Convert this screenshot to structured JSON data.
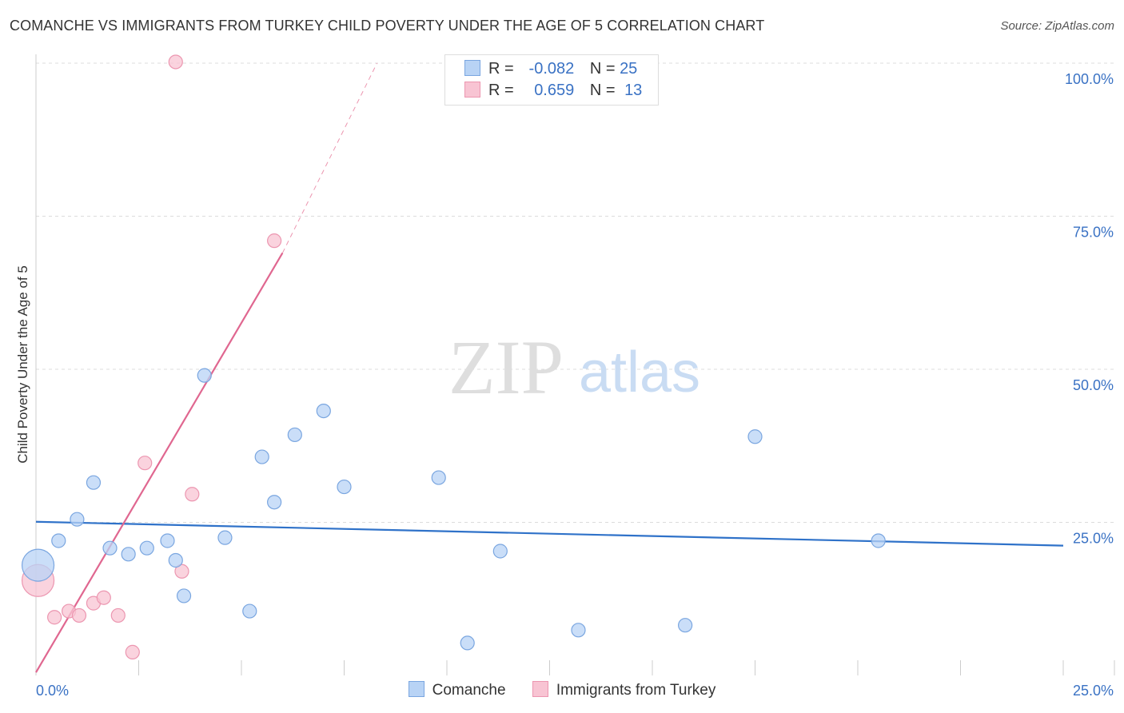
{
  "header": {
    "title": "COMANCHE VS IMMIGRANTS FROM TURKEY CHILD POVERTY UNDER THE AGE OF 5 CORRELATION CHART",
    "source": "Source: ZipAtlas.com"
  },
  "watermark": {
    "zip": "ZIP",
    "atlas": "atlas"
  },
  "stats": {
    "comanche": {
      "r_label": "R =",
      "r_value": "-0.082",
      "n_label": "N =",
      "n_value": "25"
    },
    "turkey": {
      "r_label": "R =",
      "r_value": "0.659",
      "n_label": "N =",
      "n_value": "13"
    }
  },
  "colors": {
    "comanche_fill": "#b8d3f5",
    "comanche_stroke": "#7aa6e0",
    "comanche_line": "#2f72c9",
    "turkey_fill": "#f8c4d3",
    "turkey_stroke": "#ec96b0",
    "turkey_line": "#e06790",
    "axis_text": "#3a72c4",
    "grid": "#dcdcdc"
  },
  "chart_data": {
    "type": "scatter",
    "title": "COMANCHE VS IMMIGRANTS FROM TURKEY CHILD POVERTY UNDER THE AGE OF 5 CORRELATION CHART",
    "xlabel": "",
    "ylabel": "Child Poverty Under the Age of 5",
    "xlim": [
      0,
      25
    ],
    "ylim": [
      0,
      100
    ],
    "x_ticks": [
      {
        "value": 0,
        "label": "0.0%"
      },
      {
        "value": 25,
        "label": "25.0%"
      }
    ],
    "y_ticks": [
      {
        "value": 25,
        "label": "25.0%"
      },
      {
        "value": 50,
        "label": "50.0%"
      },
      {
        "value": 75,
        "label": "75.0%"
      },
      {
        "value": 100,
        "label": "100.0%"
      }
    ],
    "series": [
      {
        "name": "Comanche",
        "r": -0.082,
        "n": 25,
        "trend": {
          "x": [
            0,
            25
          ],
          "y": [
            25.1,
            21.2
          ]
        },
        "points": [
          {
            "x": 0.05,
            "y": 18.0,
            "big": true
          },
          {
            "x": 0.55,
            "y": 22.0
          },
          {
            "x": 1.0,
            "y": 25.5
          },
          {
            "x": 1.4,
            "y": 31.5
          },
          {
            "x": 1.8,
            "y": 20.8
          },
          {
            "x": 2.25,
            "y": 19.8
          },
          {
            "x": 2.7,
            "y": 20.8
          },
          {
            "x": 3.2,
            "y": 22.0
          },
          {
            "x": 3.4,
            "y": 18.8
          },
          {
            "x": 3.6,
            "y": 13.0
          },
          {
            "x": 4.1,
            "y": 49.0
          },
          {
            "x": 4.6,
            "y": 22.5
          },
          {
            "x": 5.2,
            "y": 10.5
          },
          {
            "x": 5.5,
            "y": 35.7
          },
          {
            "x": 5.8,
            "y": 28.3
          },
          {
            "x": 6.3,
            "y": 39.3
          },
          {
            "x": 7.0,
            "y": 43.2
          },
          {
            "x": 7.5,
            "y": 30.8
          },
          {
            "x": 9.8,
            "y": 32.3
          },
          {
            "x": 10.5,
            "y": 5.3
          },
          {
            "x": 11.3,
            "y": 20.3
          },
          {
            "x": 13.2,
            "y": 7.4
          },
          {
            "x": 15.8,
            "y": 8.2
          },
          {
            "x": 17.5,
            "y": 39.0
          },
          {
            "x": 20.5,
            "y": 22.0
          }
        ]
      },
      {
        "name": "Immigrants from Turkey",
        "r": 0.659,
        "n": 13,
        "trend": {
          "x": [
            0,
            6.0
          ],
          "y": 0.5,
          "y_end": 69.0,
          "dash_to": {
            "x": 8.3,
            "y": 100
          }
        },
        "points": [
          {
            "x": 0.05,
            "y": 15.5,
            "big": true
          },
          {
            "x": 0.45,
            "y": 9.5
          },
          {
            "x": 0.8,
            "y": 10.5
          },
          {
            "x": 1.05,
            "y": 9.8
          },
          {
            "x": 1.4,
            "y": 11.8
          },
          {
            "x": 1.65,
            "y": 12.7
          },
          {
            "x": 2.0,
            "y": 9.8
          },
          {
            "x": 2.35,
            "y": 3.8
          },
          {
            "x": 2.65,
            "y": 34.7
          },
          {
            "x": 3.55,
            "y": 17.0
          },
          {
            "x": 3.8,
            "y": 29.6
          },
          {
            "x": 3.4,
            "y": 100.2
          },
          {
            "x": 5.8,
            "y": 71.0
          }
        ]
      }
    ]
  },
  "legend": {
    "comanche": "Comanche",
    "turkey": "Immigrants from Turkey"
  }
}
